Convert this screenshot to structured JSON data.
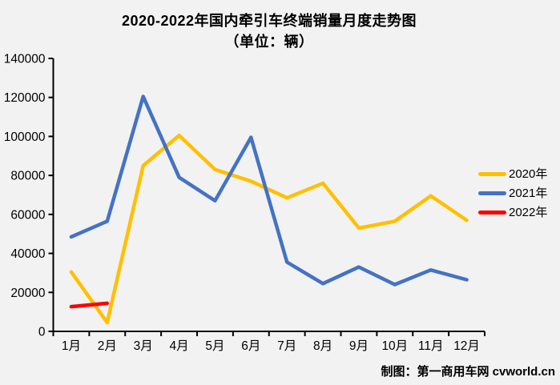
{
  "title": "2020-2022年国内牵引车终端销量月度走势图",
  "subtitle": "（单位：辆）",
  "credit": "制图：第一商用车网 cvworld.cn",
  "colors": {
    "background": "#f2f2f2",
    "axis": "#000000",
    "text": "#000000",
    "series_2020": "#FFC000",
    "series_2021": "#4472C4",
    "series_2022": "#FF0000"
  },
  "chart_data": {
    "type": "line",
    "title": "2020-2022年国内牵引车终端销量月度走势图",
    "subtitle": "（单位：辆）",
    "xlabel": "",
    "ylabel": "",
    "categories": [
      "1月",
      "2月",
      "3月",
      "4月",
      "5月",
      "6月",
      "7月",
      "8月",
      "9月",
      "10月",
      "11月",
      "12月"
    ],
    "series": [
      {
        "name": "2020年",
        "color": "#FFC000",
        "values": [
          30500,
          4500,
          85000,
          100500,
          83000,
          77000,
          68500,
          76000,
          53000,
          56500,
          69500,
          57000
        ]
      },
      {
        "name": "2021年",
        "color": "#4472C4",
        "values": [
          48500,
          56500,
          120500,
          79000,
          67000,
          99500,
          35500,
          24500,
          33000,
          24000,
          31500,
          26500
        ]
      },
      {
        "name": "2022年",
        "color": "#FF0000",
        "values": [
          12700,
          14400,
          null,
          null,
          null,
          null,
          null,
          null,
          null,
          null,
          null,
          null
        ]
      }
    ],
    "ylim": [
      0,
      140000
    ],
    "ytick_step": 20000,
    "ytick_labels": [
      "0",
      "20000",
      "40000",
      "60000",
      "80000",
      "100000",
      "120000",
      "140000"
    ],
    "grid": false,
    "legend_position": "right"
  }
}
